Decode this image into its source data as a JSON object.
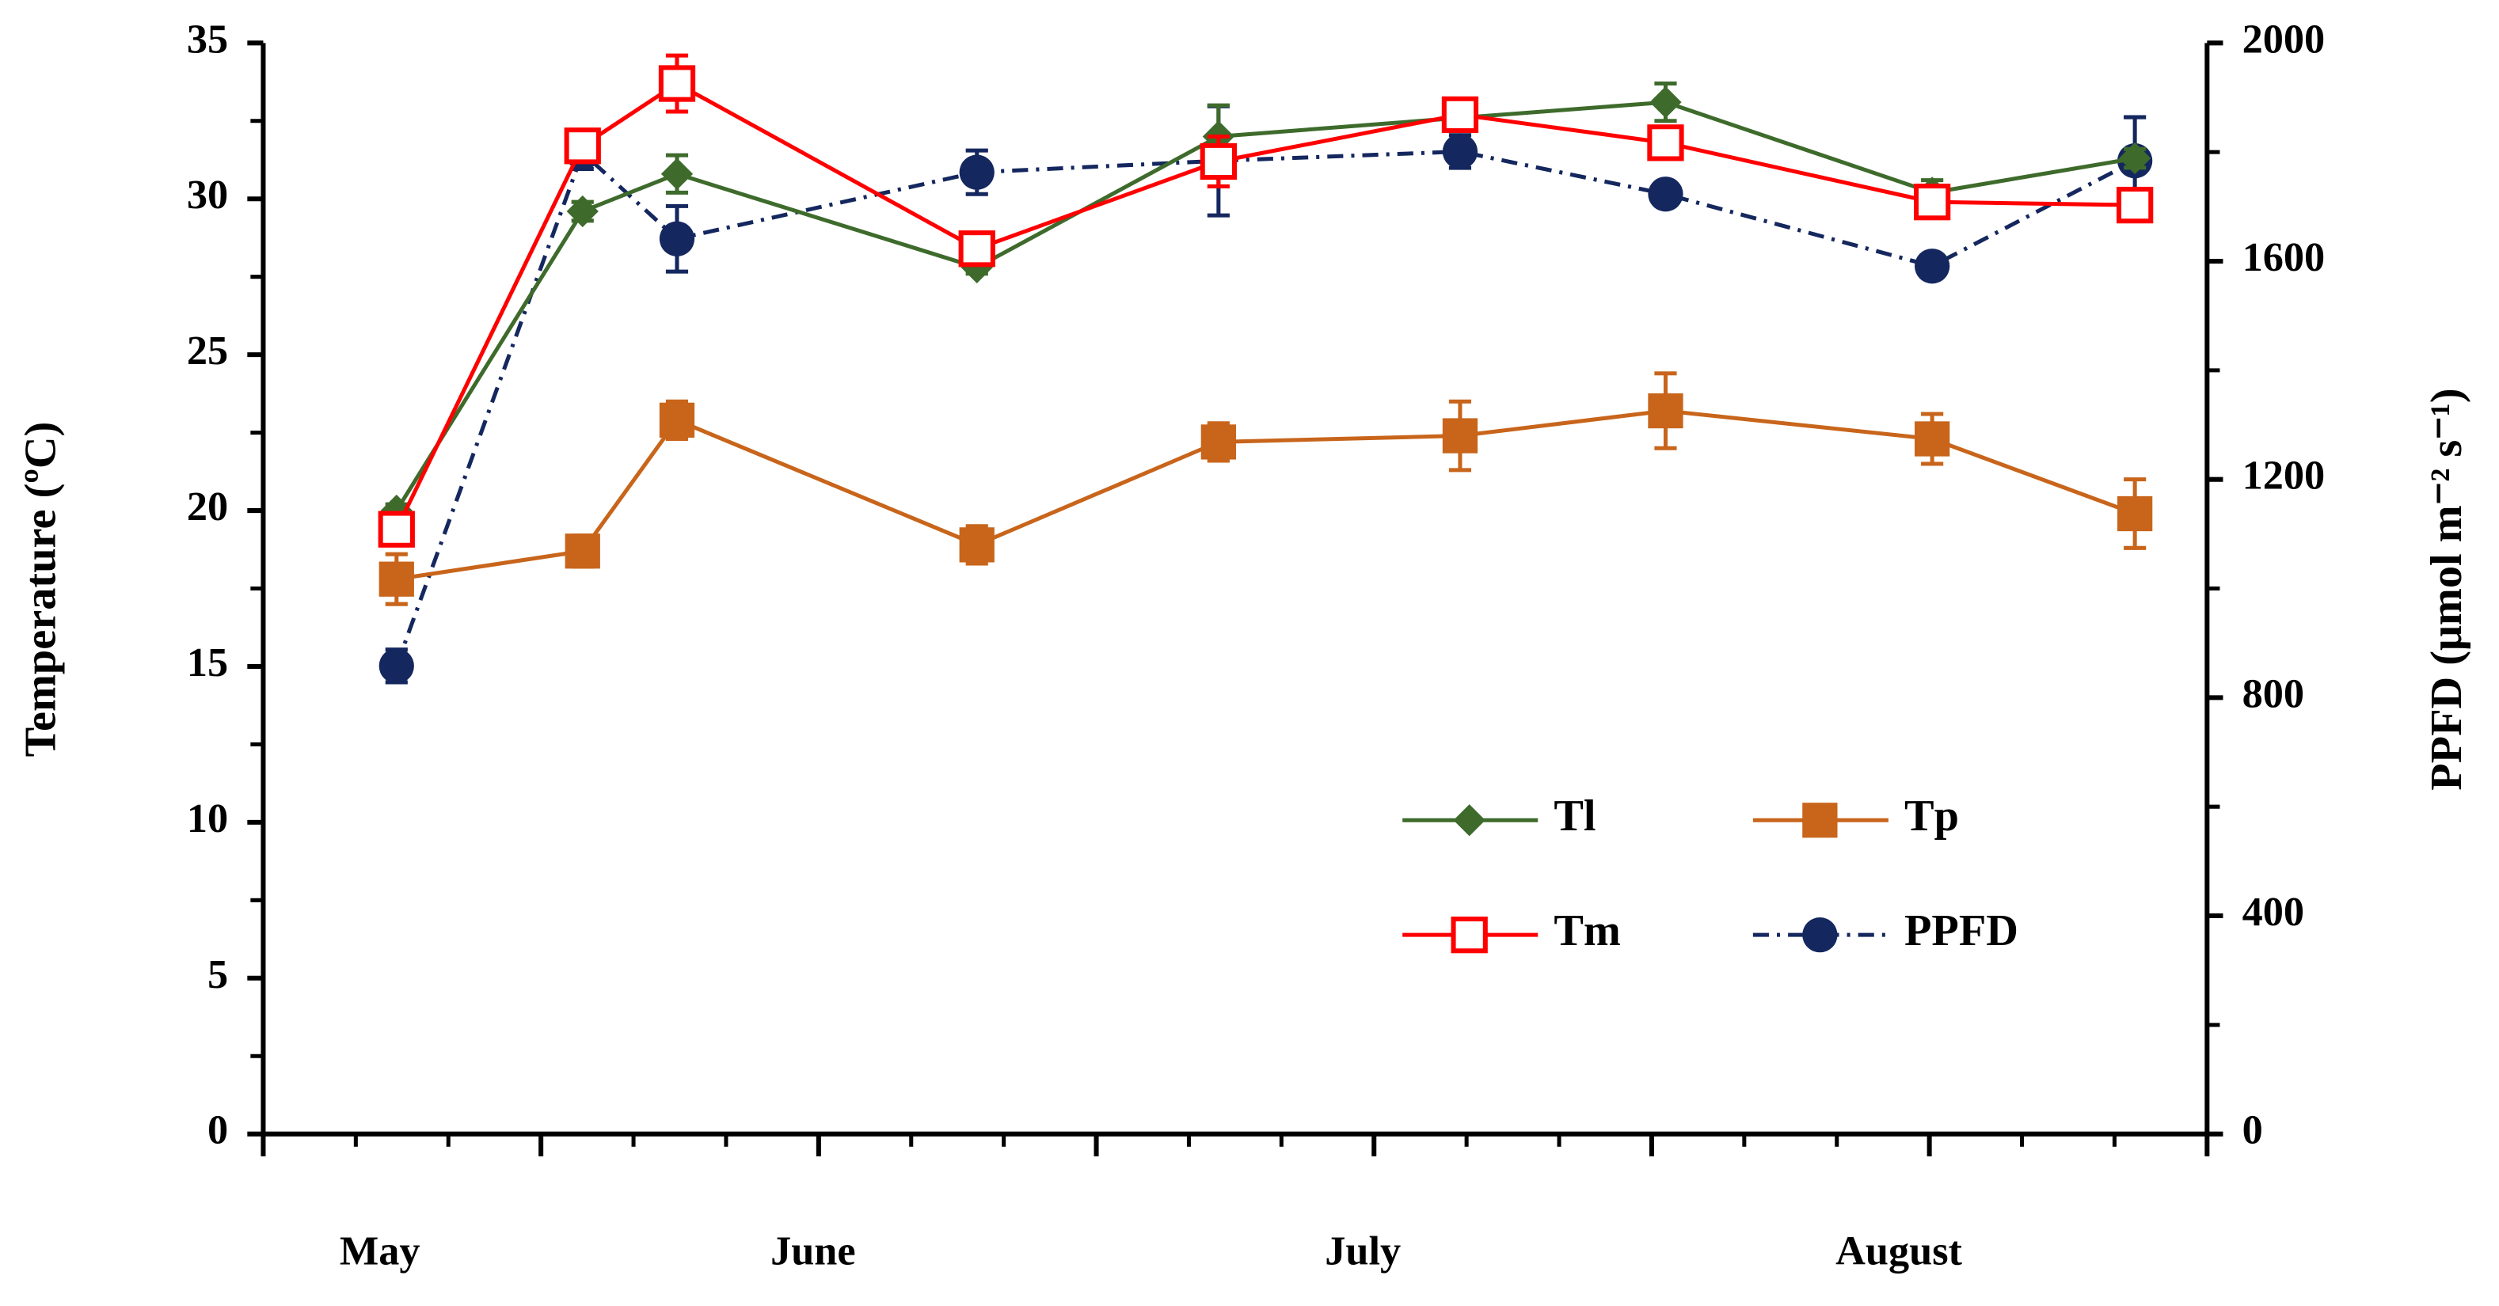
{
  "chart_data": {
    "type": "line",
    "y_label": "Temperature (ºC)",
    "y2_label": "PPFD (μmol m⁻² s⁻¹)",
    "xlim": [
      0,
      7
    ],
    "xticks": [
      0,
      1,
      2,
      3,
      4,
      5,
      6,
      7
    ],
    "xminor": 3,
    "month_labels": [
      {
        "label": "May",
        "x": 0.42
      },
      {
        "label": "June",
        "x": 1.98
      },
      {
        "label": "July",
        "x": 3.96
      },
      {
        "label": "August",
        "x": 5.89
      }
    ],
    "ylim": [
      0,
      35
    ],
    "yticks": [
      0,
      5,
      10,
      15,
      20,
      25,
      30,
      35
    ],
    "yminor": 2,
    "y2lim": [
      0,
      2000
    ],
    "y2ticks": [
      0,
      400,
      800,
      1200,
      1600,
      2000
    ],
    "y2minor": 2,
    "x": [
      0.48,
      1.15,
      1.49,
      2.57,
      3.44,
      4.31,
      5.05,
      6.01,
      6.74
    ],
    "series": [
      {
        "name": "Tl",
        "color": "#3e6b2c",
        "marker": "diamond",
        "linestyle": "solid",
        "values": [
          20.0,
          29.6,
          30.8,
          27.8,
          32.0,
          32.6,
          33.1,
          30.2,
          31.3
        ],
        "errors": [
          0.2,
          0.3,
          0.6,
          0.2,
          1.0,
          0.3,
          0.6,
          0.4,
          0.3
        ]
      },
      {
        "name": "Tp",
        "color": "#c8651b",
        "marker": "square",
        "linestyle": "solid",
        "values": [
          17.8,
          18.7,
          22.9,
          18.9,
          22.2,
          22.4,
          23.2,
          22.3,
          19.9
        ],
        "errors": [
          0.8,
          0.5,
          0.6,
          0.6,
          0.6,
          1.1,
          1.2,
          0.8,
          1.1
        ]
      },
      {
        "name": "Tm",
        "color": "#ff0000",
        "marker": "open-square",
        "linestyle": "solid",
        "values": [
          19.4,
          31.7,
          33.7,
          28.4,
          31.2,
          32.7,
          31.8,
          29.9,
          29.8
        ],
        "errors": [
          0.5,
          0.4,
          0.9,
          0.4,
          0.8,
          0.3,
          0.4,
          0.3,
          0.3
        ]
      },
      {
        "name": "PPFD",
        "color": "#14275e",
        "marker": "circle",
        "linestyle": "dashdot",
        "axis": "y2",
        "values": [
          858,
          1799,
          1641,
          1763,
          1784,
          1801,
          1723,
          1591,
          1784
        ],
        "errors": [
          30,
          30,
          60,
          40,
          100,
          30,
          10,
          20,
          80
        ]
      }
    ]
  }
}
